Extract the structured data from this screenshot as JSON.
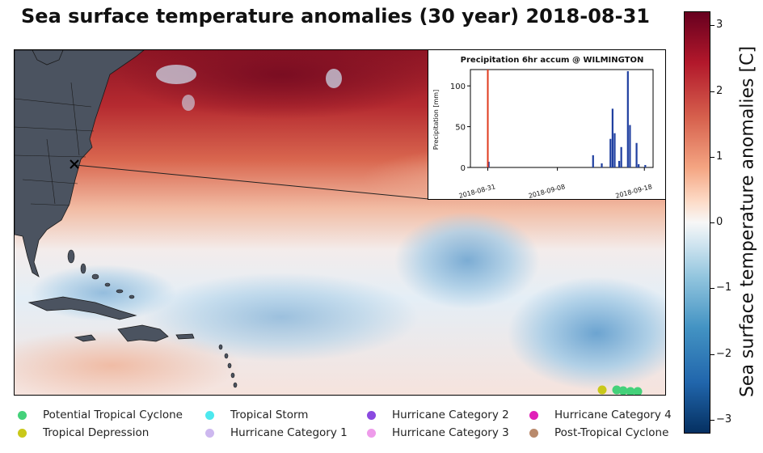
{
  "title": "Sea surface temperature anomalies (30 year) 2018-08-31",
  "colorbar": {
    "label": "Sea surface temperature anomalies [C]",
    "ticks": [
      "3",
      "2",
      "1",
      "0",
      "−1",
      "−2",
      "−3"
    ],
    "tick_values": [
      3,
      2,
      1,
      0,
      -1,
      -2,
      -3
    ],
    "range": [
      -3.2,
      3.2
    ]
  },
  "inset": {
    "title": "Precipitation 6hr accum @ WILMINGTON",
    "ylabel": "Precipitation [mm]",
    "yticks": [
      "0",
      "50",
      "100"
    ],
    "xticks": [
      "2018-08-31",
      "2018-09-08",
      "2018-09-18"
    ],
    "current_date": "2018-08-31",
    "location_marker": "x-marker-icon"
  },
  "chart_data": {
    "type": "bar",
    "title": "Precipitation 6hr accum @ WILMINGTON",
    "xlabel": "",
    "ylabel": "Precipitation [mm]",
    "ylim": [
      0,
      120
    ],
    "x_range": [
      "2018-08-29",
      "2018-09-19"
    ],
    "current_date": "2018-08-31",
    "x": [
      "2018-08-31",
      "2018-09-12",
      "2018-09-13",
      "2018-09-14",
      "2018-09-14",
      "2018-09-14",
      "2018-09-15",
      "2018-09-15",
      "2018-09-16",
      "2018-09-16",
      "2018-09-17",
      "2018-09-17",
      "2018-09-18"
    ],
    "values": [
      7,
      15,
      5,
      35,
      72,
      42,
      8,
      25,
      118,
      52,
      30,
      4,
      3
    ]
  },
  "legend": [
    {
      "label": "Potential Tropical Cyclone",
      "color": "#44d17a"
    },
    {
      "label": "Tropical Depression",
      "color": "#c9c81a"
    },
    {
      "label": "Tropical Storm",
      "color": "#4de8ee"
    },
    {
      "label": "Hurricane Category 1",
      "color": "#cdb8ef"
    },
    {
      "label": "Hurricane Category 2",
      "color": "#8a4ae0"
    },
    {
      "label": "Hurricane Category 3",
      "color": "#ee9bea"
    },
    {
      "label": "Hurricane Category 4",
      "color": "#e01fb8"
    },
    {
      "label": "Post-Tropical Cyclone",
      "color": "#b98a6c"
    }
  ],
  "colors": {
    "land": "#4b5360",
    "warm": "#b2182b",
    "cool": "#92c5de",
    "bar": "#1f3fa0",
    "current_line": "#e03a1e"
  }
}
